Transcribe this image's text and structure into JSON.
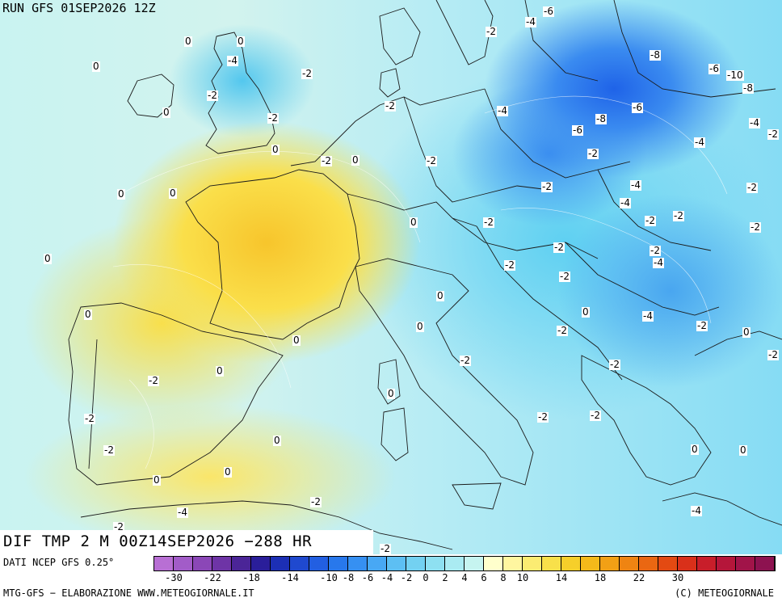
{
  "header": {
    "run_title": "RUN GFS 01SEP2026 12Z"
  },
  "map": {
    "field_title": "DIF TMP 2 M 00Z14SEP2026 −288 HR",
    "contour_labels": [
      "-6",
      "-4",
      "-2",
      "0",
      "0",
      "0",
      "-4",
      "-2",
      "-8",
      "-6",
      "-10",
      "-8",
      "-2",
      "-2",
      "-4",
      "-6",
      "-6",
      "-8",
      "-2",
      "-4",
      "-4",
      "-2",
      "0",
      "0",
      "-2",
      "0",
      "-2",
      "-2",
      "-4",
      "-2",
      "-4",
      "-2",
      "-2",
      "-2",
      "-2",
      "0",
      "-2",
      "-2",
      "-4",
      "-2",
      "-2",
      "-4",
      "-2",
      "0",
      "0",
      "0",
      "0",
      "0",
      "0",
      "-2",
      "-2",
      "0",
      "-2",
      "-2",
      "-2",
      "-2",
      "0",
      "0",
      "0",
      "0",
      "0",
      "0",
      "0",
      "-2",
      "-2",
      "-2",
      "-2",
      "-2",
      "0",
      "0",
      "-4",
      "-4",
      "-2",
      "-2"
    ]
  },
  "legend": {
    "data_source": "DATI NCEP GFS 0.25°",
    "colors": [
      "#b86fd4",
      "#a25cc8",
      "#8b47b7",
      "#6e34a6",
      "#4b2597",
      "#2a1e9a",
      "#1c2fb5",
      "#1f49cf",
      "#225fe2",
      "#2878ec",
      "#3690f2",
      "#48a8f4",
      "#5dbff3",
      "#73d1f1",
      "#8ee0f1",
      "#aaebf2",
      "#c6f4f0",
      "#ffffcc",
      "#fff6a0",
      "#fbec72",
      "#f8e04a",
      "#f6cf2a",
      "#f4b91a",
      "#f2a015",
      "#ef8412",
      "#ea6712",
      "#e34a12",
      "#d9301a",
      "#c81e2a",
      "#b5163a",
      "#a11449",
      "#8d1250"
    ],
    "ticks": [
      "-30",
      "-22",
      "-18",
      "-14",
      "-10",
      "-8",
      "-6",
      "-4",
      "-2",
      "0",
      "2",
      "4",
      "6",
      "8",
      "10",
      "14",
      "18",
      "22",
      "30"
    ]
  },
  "footer": {
    "credits_left": "MTG-GFS − ELABORAZIONE WWW.METEOGIORNALE.IT",
    "credits_right": "(C) METEOGIORNALE"
  }
}
